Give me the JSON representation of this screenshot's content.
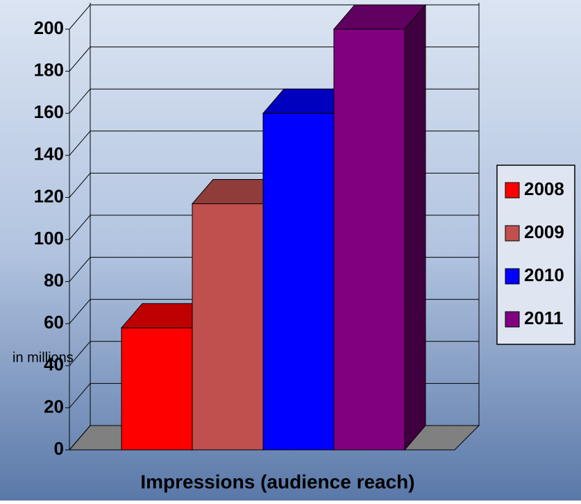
{
  "chart_data": {
    "type": "bar",
    "categories": [
      "Impressions (audience reach)"
    ],
    "y_label": "in millions",
    "series": [
      {
        "name": "2008",
        "color": "#ff0000",
        "values": [
          58
        ]
      },
      {
        "name": "2009",
        "color": "#c0504d",
        "values": [
          117
        ]
      },
      {
        "name": "2010",
        "color": "#0000ff",
        "values": [
          160
        ]
      },
      {
        "name": "2011",
        "color": "#800080",
        "values": [
          200
        ]
      }
    ],
    "ylim": [
      0,
      200
    ],
    "yticks": [
      0,
      20,
      40,
      60,
      80,
      100,
      120,
      140,
      160,
      180,
      200
    ],
    "grid": true,
    "legend": "right"
  }
}
